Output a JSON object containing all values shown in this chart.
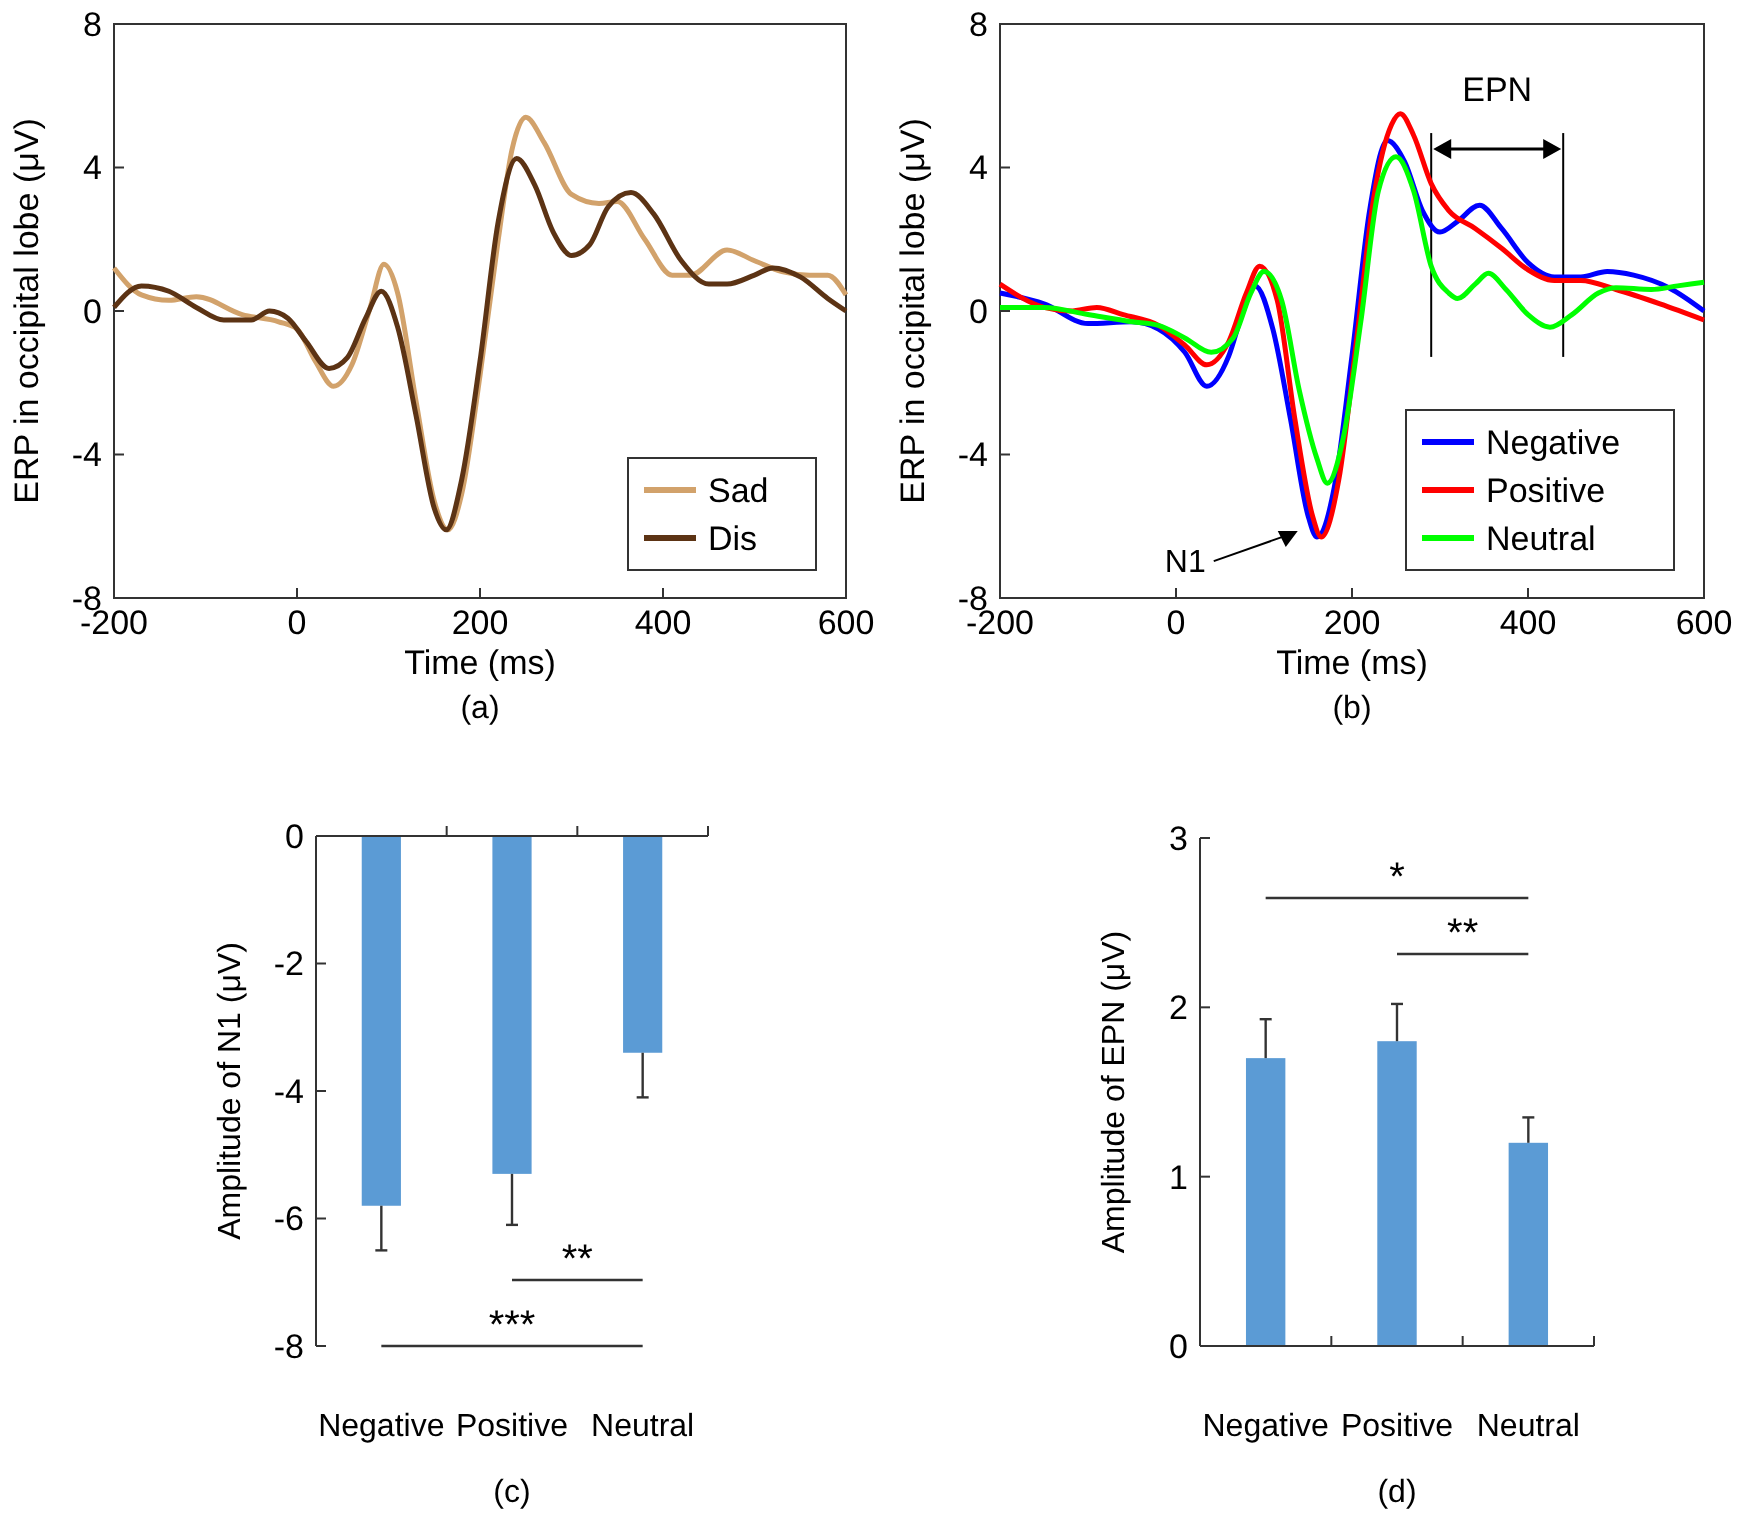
{
  "chart_data": [
    {
      "type": "line",
      "title": "(a)",
      "xlabel": "Time (ms)",
      "ylabel": "ERP in occipital lobe (μV)",
      "xlim": [
        -200,
        600
      ],
      "xticks": [
        -200,
        0,
        200,
        400,
        600
      ],
      "ylim": [
        -8,
        8
      ],
      "yticks": [
        -8,
        -4,
        0,
        4,
        8
      ],
      "legend": "bottom right",
      "series": [
        {
          "name": "Sad",
          "color": "#d2a26b",
          "x": [
            -200,
            -170,
            -140,
            -110,
            -60,
            -20,
            0,
            20,
            40,
            60,
            80,
            95,
            110,
            130,
            150,
            165,
            180,
            200,
            220,
            235,
            250,
            270,
            300,
            330,
            350,
            380,
            410,
            430,
            470,
            500,
            530,
            560,
            580,
            600
          ],
          "values": [
            1.2,
            0.45,
            0.3,
            0.4,
            -0.1,
            -0.3,
            -0.5,
            -1.4,
            -2.1,
            -1.5,
            0.1,
            1.3,
            0.5,
            -2.5,
            -5.3,
            -6.1,
            -5.1,
            -1.8,
            2.0,
            4.5,
            5.4,
            4.7,
            3.25,
            3.0,
            3.05,
            2.0,
            1.0,
            1.0,
            1.7,
            1.4,
            1.1,
            1.0,
            1.0,
            0.45
          ]
        },
        {
          "name": "Dis",
          "color": "#5c3314",
          "x": [
            -200,
            -170,
            -140,
            -110,
            -80,
            -50,
            -30,
            -10,
            10,
            35,
            55,
            75,
            92,
            110,
            130,
            150,
            163,
            180,
            200,
            220,
            240,
            260,
            280,
            300,
            320,
            340,
            365,
            390,
            420,
            450,
            470,
            500,
            520,
            550,
            580,
            600
          ],
          "values": [
            0.1,
            0.7,
            0.55,
            0.1,
            -0.25,
            -0.25,
            0,
            -0.2,
            -0.85,
            -1.6,
            -1.3,
            -0.2,
            0.55,
            -0.45,
            -2.9,
            -5.5,
            -6.1,
            -4.7,
            -1.4,
            2.5,
            4.25,
            3.5,
            2.2,
            1.55,
            1.85,
            2.9,
            3.3,
            2.7,
            1.4,
            0.75,
            0.75,
            1.0,
            1.2,
            0.95,
            0.35,
            0
          ]
        }
      ]
    },
    {
      "type": "line",
      "title": "(b)",
      "xlabel": "Time (ms)",
      "ylabel": "ERP in occipital lobe (μV)",
      "xlim": [
        -200,
        600
      ],
      "xticks": [
        -200,
        0,
        200,
        400,
        600
      ],
      "ylim": [
        -8,
        8
      ],
      "yticks": [
        -8,
        -4,
        0,
        4,
        8
      ],
      "legend": "bottom right",
      "annotations": [
        "EPN",
        "N1"
      ],
      "ref_lines": [
        {
          "axis": "x",
          "value": 290,
          "color": "#000000"
        },
        {
          "axis": "x",
          "value": 440,
          "color": "#000000"
        }
      ],
      "series": [
        {
          "name": "Negative",
          "color": "#0000ff",
          "x": [
            -200,
            -150,
            -100,
            -50,
            -20,
            10,
            35,
            60,
            75,
            90,
            110,
            130,
            150,
            160,
            180,
            200,
            220,
            240,
            260,
            280,
            300,
            320,
            345,
            370,
            400,
            430,
            460,
            490,
            520,
            560,
            600
          ],
          "values": [
            0.5,
            0.2,
            -0.35,
            -0.3,
            -0.5,
            -1.15,
            -2.1,
            -1.25,
            -0.1,
            0.7,
            -0.5,
            -3.0,
            -5.7,
            -6.3,
            -4.9,
            -1.25,
            2.8,
            4.75,
            4.15,
            2.8,
            2.2,
            2.5,
            2.95,
            2.3,
            1.35,
            0.95,
            0.95,
            1.1,
            1.0,
            0.65,
            0
          ]
        },
        {
          "name": "Positive",
          "color": "#ff0000",
          "x": [
            -200,
            -150,
            -120,
            -90,
            -60,
            -20,
            10,
            35,
            60,
            80,
            95,
            115,
            135,
            155,
            165,
            185,
            205,
            225,
            245,
            255,
            270,
            290,
            310,
            340,
            370,
            400,
            430,
            460,
            500,
            550,
            600
          ],
          "values": [
            0.75,
            0.1,
            0,
            0.1,
            -0.1,
            -0.4,
            -0.95,
            -1.5,
            -0.85,
            0.5,
            1.25,
            0.3,
            -3.0,
            -5.7,
            -6.3,
            -4.7,
            -0.85,
            3.2,
            5.2,
            5.5,
            4.9,
            3.55,
            2.8,
            2.3,
            1.75,
            1.15,
            0.85,
            0.85,
            0.6,
            0.2,
            -0.25
          ]
        },
        {
          "name": "Neutral",
          "color": "#00ff00",
          "x": [
            -200,
            -150,
            -100,
            -50,
            -20,
            10,
            40,
            65,
            85,
            100,
            120,
            140,
            160,
            172,
            190,
            210,
            230,
            250,
            270,
            290,
            310,
            320,
            340,
            355,
            375,
            400,
            425,
            450,
            480,
            500,
            540,
            570,
            600
          ],
          "values": [
            0.1,
            0.1,
            -0.1,
            -0.3,
            -0.4,
            -0.75,
            -1.15,
            -0.75,
            0.5,
            1.1,
            0.3,
            -2.2,
            -4.1,
            -4.8,
            -3.55,
            -0.3,
            3.35,
            4.3,
            3.35,
            1.25,
            0.5,
            0.35,
            0.75,
            1.05,
            0.6,
            -0.1,
            -0.45,
            -0.1,
            0.5,
            0.65,
            0.6,
            0.7,
            0.8
          ]
        }
      ]
    },
    {
      "type": "bar",
      "title": "(c)",
      "ylabel": "Amplitude of N1 (μV)",
      "categories": [
        "Negative",
        "Positive",
        "Neutral"
      ],
      "values": [
        -5.8,
        -5.3,
        -3.4
      ],
      "errors": [
        [
          -6.5,
          -5.8
        ],
        [
          -6.1,
          -5.3
        ],
        [
          -4.1,
          -3.4
        ]
      ],
      "color": "#5b9bd5",
      "ylim": [
        -8,
        0
      ],
      "yticks": [
        -8,
        -6,
        -4,
        -2,
        0
      ],
      "annotations": [
        "**",
        "***"
      ]
    },
    {
      "type": "bar",
      "title": "(d)",
      "ylabel": "Amplitude of EPN (μV)",
      "categories": [
        "Negative",
        "Positive",
        "Neutral"
      ],
      "values": [
        1.7,
        1.8,
        1.2
      ],
      "errors": [
        [
          1.7,
          1.93
        ],
        [
          1.8,
          2.02
        ],
        [
          1.2,
          1.35
        ]
      ],
      "color": "#5b9bd5",
      "ylim": [
        0,
        3
      ],
      "yticks": [
        0,
        1,
        2,
        3
      ],
      "annotations": [
        "*",
        "**"
      ]
    }
  ]
}
